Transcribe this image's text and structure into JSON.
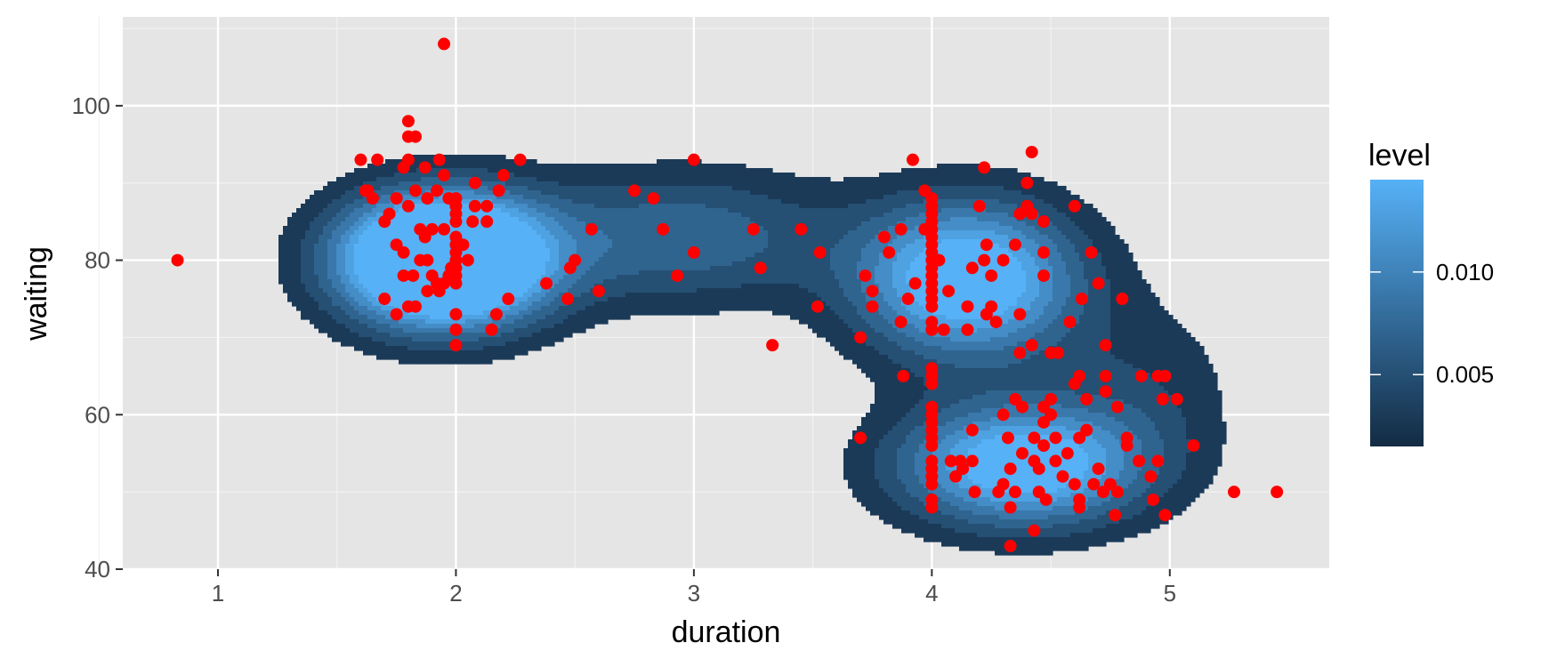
{
  "chart_data": {
    "type": "scatter",
    "overlay": "filled-density-contours",
    "title": "",
    "xlabel": "duration",
    "ylabel": "waiting",
    "xlim": [
      0.6,
      5.67
    ],
    "ylim": [
      40,
      111.5
    ],
    "x_ticks": [
      "1",
      "2",
      "3",
      "4",
      "5"
    ],
    "y_ticks": [
      "40",
      "60",
      "80",
      "100"
    ],
    "grid": true,
    "point_color": "#ff0000",
    "panel_background": "#e5e5e5",
    "legend": {
      "title": "level",
      "placement": "right",
      "labels": [
        "0.005",
        "0.010"
      ],
      "colormap": [
        "#132b43",
        "#56b1f7"
      ]
    },
    "density_levels": [
      0.002,
      0.004,
      0.006,
      0.008,
      0.01,
      0.012,
      0.014
    ],
    "points": [
      [
        0.83,
        80
      ],
      [
        1.95,
        108
      ],
      [
        3.0,
        93
      ],
      [
        3.0,
        81
      ],
      [
        2.75,
        89
      ],
      [
        2.83,
        88
      ],
      [
        2.87,
        84
      ],
      [
        2.93,
        78
      ],
      [
        3.25,
        84
      ],
      [
        3.28,
        79
      ],
      [
        3.33,
        69
      ],
      [
        3.45,
        84
      ],
      [
        3.52,
        74
      ],
      [
        3.53,
        81
      ],
      [
        1.6,
        93
      ],
      [
        1.67,
        93
      ],
      [
        1.62,
        89
      ],
      [
        1.65,
        88
      ],
      [
        1.63,
        89
      ],
      [
        1.7,
        85
      ],
      [
        1.72,
        86
      ],
      [
        1.75,
        88
      ],
      [
        1.7,
        75
      ],
      [
        1.75,
        82
      ],
      [
        1.78,
        81
      ],
      [
        1.8,
        98
      ],
      [
        1.8,
        96
      ],
      [
        1.83,
        96
      ],
      [
        1.8,
        93
      ],
      [
        1.78,
        92
      ],
      [
        1.87,
        92
      ],
      [
        1.93,
        93
      ],
      [
        1.95,
        91
      ],
      [
        1.83,
        89
      ],
      [
        1.88,
        88
      ],
      [
        1.92,
        89
      ],
      [
        1.97,
        88
      ],
      [
        1.8,
        87
      ],
      [
        1.85,
        84
      ],
      [
        1.9,
        84
      ],
      [
        1.95,
        84
      ],
      [
        2.0,
        88
      ],
      [
        2.0,
        87
      ],
      [
        2.0,
        86
      ],
      [
        2.0,
        85
      ],
      [
        2.0,
        83
      ],
      [
        2.0,
        82
      ],
      [
        2.0,
        81
      ],
      [
        2.0,
        80
      ],
      [
        2.0,
        79
      ],
      [
        2.0,
        78
      ],
      [
        2.0,
        77
      ],
      [
        2.0,
        73
      ],
      [
        2.0,
        71
      ],
      [
        2.0,
        69
      ],
      [
        1.78,
        78
      ],
      [
        1.82,
        78
      ],
      [
        1.85,
        80
      ],
      [
        1.87,
        83
      ],
      [
        1.88,
        80
      ],
      [
        1.9,
        78
      ],
      [
        1.92,
        77
      ],
      [
        1.93,
        76
      ],
      [
        1.95,
        77
      ],
      [
        1.97,
        78
      ],
      [
        1.98,
        79
      ],
      [
        1.75,
        73
      ],
      [
        1.8,
        74
      ],
      [
        1.83,
        74
      ],
      [
        1.88,
        76
      ],
      [
        2.03,
        82
      ],
      [
        2.05,
        80
      ],
      [
        2.07,
        85
      ],
      [
        2.08,
        87
      ],
      [
        2.08,
        90
      ],
      [
        2.13,
        87
      ],
      [
        2.13,
        85
      ],
      [
        2.15,
        71
      ],
      [
        2.17,
        73
      ],
      [
        2.18,
        89
      ],
      [
        2.2,
        91
      ],
      [
        2.22,
        75
      ],
      [
        2.27,
        93
      ],
      [
        2.38,
        77
      ],
      [
        2.47,
        75
      ],
      [
        2.48,
        79
      ],
      [
        2.5,
        80
      ],
      [
        2.57,
        84
      ],
      [
        2.6,
        76
      ],
      [
        3.7,
        70
      ],
      [
        3.7,
        57
      ],
      [
        3.72,
        78
      ],
      [
        3.75,
        76
      ],
      [
        3.75,
        74
      ],
      [
        3.8,
        83
      ],
      [
        3.82,
        81
      ],
      [
        3.87,
        84
      ],
      [
        3.87,
        72
      ],
      [
        3.88,
        65
      ],
      [
        3.9,
        75
      ],
      [
        3.92,
        93
      ],
      [
        3.93,
        77
      ],
      [
        3.97,
        89
      ],
      [
        3.97,
        84
      ],
      [
        4.0,
        88
      ],
      [
        4.0,
        87
      ],
      [
        4.0,
        86
      ],
      [
        4.0,
        85
      ],
      [
        4.0,
        84
      ],
      [
        4.0,
        83
      ],
      [
        4.0,
        82
      ],
      [
        4.0,
        81
      ],
      [
        4.0,
        80
      ],
      [
        4.0,
        79
      ],
      [
        4.0,
        78
      ],
      [
        4.0,
        77
      ],
      [
        4.0,
        76
      ],
      [
        4.0,
        75
      ],
      [
        4.0,
        74
      ],
      [
        4.0,
        72
      ],
      [
        4.0,
        71
      ],
      [
        4.0,
        66
      ],
      [
        4.0,
        65
      ],
      [
        4.0,
        64
      ],
      [
        4.0,
        61
      ],
      [
        4.0,
        60
      ],
      [
        4.0,
        59
      ],
      [
        4.0,
        58
      ],
      [
        4.0,
        57
      ],
      [
        4.0,
        56
      ],
      [
        4.0,
        54
      ],
      [
        4.0,
        53
      ],
      [
        4.0,
        52
      ],
      [
        4.0,
        51
      ],
      [
        4.0,
        49
      ],
      [
        4.0,
        48
      ],
      [
        4.03,
        80
      ],
      [
        4.05,
        71
      ],
      [
        4.07,
        76
      ],
      [
        4.08,
        54
      ],
      [
        4.1,
        52
      ],
      [
        4.12,
        54
      ],
      [
        4.13,
        53
      ],
      [
        4.15,
        71
      ],
      [
        4.15,
        74
      ],
      [
        4.17,
        58
      ],
      [
        4.17,
        54
      ],
      [
        4.18,
        50
      ],
      [
        4.17,
        79
      ],
      [
        4.2,
        87
      ],
      [
        4.22,
        80
      ],
      [
        4.22,
        92
      ],
      [
        4.23,
        82
      ],
      [
        4.23,
        73
      ],
      [
        4.25,
        78
      ],
      [
        4.25,
        74
      ],
      [
        4.27,
        72
      ],
      [
        4.28,
        50
      ],
      [
        4.3,
        80
      ],
      [
        4.3,
        60
      ],
      [
        4.32,
        57
      ],
      [
        4.3,
        51
      ],
      [
        4.33,
        53
      ],
      [
        4.33,
        48
      ],
      [
        4.33,
        43
      ],
      [
        4.35,
        82
      ],
      [
        4.35,
        62
      ],
      [
        4.35,
        50
      ],
      [
        4.37,
        86
      ],
      [
        4.37,
        68
      ],
      [
        4.37,
        73
      ],
      [
        4.38,
        61
      ],
      [
        4.38,
        55
      ],
      [
        4.4,
        87
      ],
      [
        4.4,
        90
      ],
      [
        4.42,
        94
      ],
      [
        4.42,
        86
      ],
      [
        4.42,
        69
      ],
      [
        4.43,
        57
      ],
      [
        4.43,
        54
      ],
      [
        4.43,
        45
      ],
      [
        4.45,
        53
      ],
      [
        4.45,
        50
      ],
      [
        4.47,
        85
      ],
      [
        4.47,
        81
      ],
      [
        4.47,
        78
      ],
      [
        4.47,
        61
      ],
      [
        4.47,
        59
      ],
      [
        4.47,
        56
      ],
      [
        4.48,
        49
      ],
      [
        4.5,
        68
      ],
      [
        4.5,
        62
      ],
      [
        4.5,
        60
      ],
      [
        4.52,
        57
      ],
      [
        4.52,
        54
      ],
      [
        4.53,
        68
      ],
      [
        4.55,
        52
      ],
      [
        4.57,
        55
      ],
      [
        4.58,
        72
      ],
      [
        4.6,
        87
      ],
      [
        4.6,
        64
      ],
      [
        4.6,
        51
      ],
      [
        4.62,
        65
      ],
      [
        4.62,
        57
      ],
      [
        4.62,
        49
      ],
      [
        4.62,
        48
      ],
      [
        4.63,
        75
      ],
      [
        4.65,
        58
      ],
      [
        4.65,
        62
      ],
      [
        4.67,
        81
      ],
      [
        4.68,
        51
      ],
      [
        4.7,
        77
      ],
      [
        4.7,
        53
      ],
      [
        4.72,
        50
      ],
      [
        4.73,
        69
      ],
      [
        4.73,
        65
      ],
      [
        4.73,
        63
      ],
      [
        4.75,
        51
      ],
      [
        4.77,
        47
      ],
      [
        4.78,
        61
      ],
      [
        4.78,
        50
      ],
      [
        4.8,
        75
      ],
      [
        4.82,
        57
      ],
      [
        4.82,
        56
      ],
      [
        4.87,
        54
      ],
      [
        4.88,
        65
      ],
      [
        4.92,
        52
      ],
      [
        4.93,
        49
      ],
      [
        4.95,
        54
      ],
      [
        4.95,
        65
      ],
      [
        4.97,
        62
      ],
      [
        4.98,
        65
      ],
      [
        4.98,
        47
      ],
      [
        5.03,
        62
      ],
      [
        5.1,
        56
      ],
      [
        5.27,
        50
      ],
      [
        5.45,
        50
      ]
    ]
  }
}
